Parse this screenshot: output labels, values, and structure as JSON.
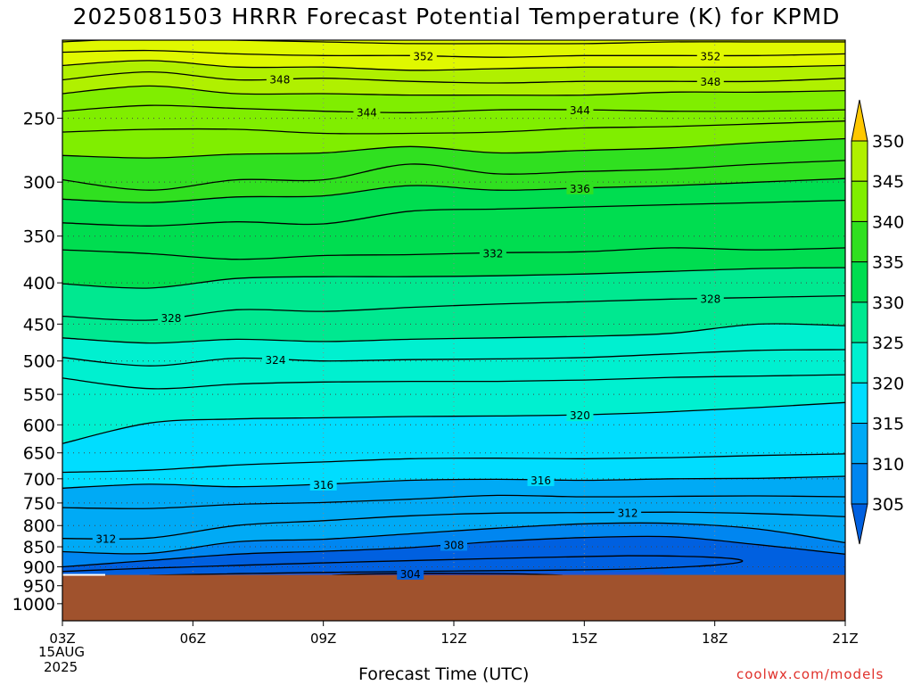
{
  "title": "2025081503 HRRR Forecast Potential Temperature (K) for KPMD",
  "credit": "coolwx.com/models",
  "colors": {
    "ground": "#a0522d",
    "contour": "#000000",
    "bands": [
      "#0060e0",
      "#0086f0",
      "#00aaf5",
      "#00ddff",
      "#00f0d0",
      "#00e890",
      "#00dd50",
      "#30e020",
      "#80ee00",
      "#b0f000",
      "#e0f800",
      "#ffff00",
      "#ffe000",
      "#ffc800"
    ]
  },
  "chart_data": {
    "type": "heatmap",
    "title": "2025081503 HRRR Forecast Potential Temperature (K) for KPMD",
    "xlabel": "Forecast Time (UTC)",
    "ylabel": "",
    "x_ticks": [
      "03Z",
      "06Z",
      "09Z",
      "12Z",
      "15Z",
      "18Z",
      "21Z"
    ],
    "x_start_date": [
      "15AUG",
      "2025"
    ],
    "x_range_hours": [
      3,
      21
    ],
    "y_ticks": [
      250,
      300,
      350,
      400,
      450,
      500,
      550,
      600,
      650,
      700,
      750,
      800,
      850,
      900,
      950,
      1000
    ],
    "y_range_hPa": [
      1050,
      200
    ],
    "log_pressure_axis": true,
    "grid": "dotted",
    "surface_pressure_hPa": 921,
    "colorbar": {
      "levels": [
        305,
        310,
        315,
        320,
        325,
        330,
        335,
        340,
        345,
        350
      ],
      "labels": [
        "305",
        "310",
        "315",
        "320",
        "325",
        "330",
        "335",
        "340",
        "345",
        "350"
      ],
      "extend": "both"
    },
    "contour_labels": [
      {
        "value": "352",
        "hours": [
          11.3,
          17.9
        ]
      },
      {
        "value": "348",
        "hours": [
          8.0,
          17.9
        ]
      },
      {
        "value": "344",
        "hours": [
          10.0,
          14.9
        ]
      },
      {
        "value": "336",
        "hours": [
          14.9
        ]
      },
      {
        "value": "332",
        "hours": [
          12.9
        ]
      },
      {
        "value": "328",
        "hours": [
          5.5,
          17.9
        ]
      },
      {
        "value": "324",
        "hours": [
          7.9
        ]
      },
      {
        "value": "320",
        "hours": [
          14.9
        ]
      },
      {
        "value": "316",
        "hours": [
          9.0,
          14.0
        ]
      },
      {
        "value": "312",
        "hours": [
          4.0,
          16.0
        ]
      },
      {
        "value": "308",
        "hours": [
          12.0
        ]
      },
      {
        "value": "304",
        "hours": [
          11.0
        ]
      }
    ],
    "isentropes": [
      {
        "theta": 354,
        "hours": [
          3,
          5,
          7,
          9,
          11,
          13,
          15,
          17,
          19,
          21
        ],
        "p": [
          201,
          199,
          200,
          201,
          202,
          202,
          202,
          201,
          201,
          201
        ]
      },
      {
        "theta": 352,
        "hours": [
          3,
          5,
          7,
          9,
          11,
          13,
          15,
          17,
          19,
          21
        ],
        "p": [
          207,
          206,
          208,
          209,
          209,
          210,
          209,
          209,
          209,
          208
        ]
      },
      {
        "theta": 350,
        "hours": [
          3,
          5,
          7,
          9,
          11,
          13,
          15,
          17,
          19,
          21
        ],
        "p": [
          215,
          212,
          216,
          216,
          218,
          217,
          216,
          216,
          216,
          215
        ]
      },
      {
        "theta": 348,
        "hours": [
          3,
          5,
          7,
          9,
          11,
          13,
          15,
          17,
          19,
          21
        ],
        "p": [
          224,
          219,
          224,
          223,
          225,
          226,
          225,
          225,
          225,
          223
        ]
      },
      {
        "theta": 346,
        "hours": [
          3,
          5,
          7,
          9,
          11,
          13,
          15,
          17,
          19,
          21
        ],
        "p": [
          233,
          228,
          233,
          233,
          234,
          234,
          234,
          232,
          232,
          231
        ]
      },
      {
        "theta": 344,
        "hours": [
          3,
          5,
          7,
          9,
          11,
          13,
          15,
          17,
          19,
          21
        ],
        "p": [
          245,
          241,
          243,
          245,
          246,
          244,
          244,
          245,
          245,
          244
        ]
      },
      {
        "theta": 342,
        "hours": [
          3,
          5,
          7,
          9,
          11,
          13,
          15,
          17,
          19,
          21
        ],
        "p": [
          260,
          258,
          258,
          261,
          261,
          260,
          257,
          256,
          254,
          252
        ]
      },
      {
        "theta": 340,
        "hours": [
          3,
          5,
          7,
          9,
          11,
          13,
          15,
          17,
          19,
          21
        ],
        "p": [
          278,
          280,
          277,
          276,
          271,
          276,
          274,
          272,
          268,
          265
        ]
      },
      {
        "theta": 338,
        "hours": [
          3,
          5,
          7,
          9,
          11,
          13,
          15,
          17,
          19,
          21
        ],
        "p": [
          298,
          307,
          298,
          298,
          285,
          293,
          291,
          289,
          285,
          282
        ]
      },
      {
        "theta": 336,
        "hours": [
          3,
          5,
          7,
          9,
          11,
          13,
          15,
          17,
          19,
          21
        ],
        "p": [
          315,
          318,
          313,
          312,
          303,
          307,
          305,
          303,
          300,
          297
        ]
      },
      {
        "theta": 334,
        "hours": [
          3,
          5,
          7,
          9,
          11,
          13,
          15,
          17,
          19,
          21
        ],
        "p": [
          337,
          340,
          336,
          338,
          326,
          324,
          322,
          320,
          318,
          316
        ]
      },
      {
        "theta": 332,
        "hours": [
          3,
          5,
          7,
          9,
          11,
          13,
          15,
          17,
          19,
          21
        ],
        "p": [
          364,
          368,
          374,
          370,
          369,
          367,
          366,
          362,
          364,
          362
        ]
      },
      {
        "theta": 330,
        "hours": [
          3,
          5,
          7,
          9,
          11,
          13,
          15,
          17,
          19,
          21
        ],
        "p": [
          401,
          406,
          395,
          393,
          393,
          392,
          390,
          387,
          384,
          383
        ]
      },
      {
        "theta": 328,
        "hours": [
          3,
          5,
          7,
          9,
          11,
          13,
          15,
          17,
          19,
          21
        ],
        "p": [
          440,
          445,
          432,
          434,
          429,
          425,
          422,
          419,
          417,
          415
        ]
      },
      {
        "theta": 326,
        "hours": [
          3,
          5,
          7,
          9,
          11,
          13,
          15,
          17,
          19,
          21
        ],
        "p": [
          468,
          475,
          470,
          473,
          470,
          468,
          466,
          462,
          450,
          452
        ]
      },
      {
        "theta": 324,
        "hours": [
          3,
          5,
          7,
          9,
          11,
          13,
          15,
          17,
          19,
          21
        ],
        "p": [
          495,
          507,
          496,
          500,
          498,
          497,
          495,
          490,
          485,
          484
        ]
      },
      {
        "theta": 322,
        "hours": [
          3,
          5,
          7,
          9,
          11,
          13,
          15,
          17,
          19,
          21
        ],
        "p": [
          525,
          541,
          534,
          531,
          530,
          530,
          528,
          524,
          522,
          520
        ]
      },
      {
        "theta": 320,
        "hours": [
          3,
          5,
          7,
          9,
          11,
          13,
          15,
          17,
          19,
          21
        ],
        "p": [
          633,
          597,
          590,
          588,
          586,
          585,
          583,
          578,
          571,
          563
        ]
      },
      {
        "theta": 318,
        "hours": [
          3,
          5,
          7,
          9,
          11,
          13,
          15,
          17,
          19,
          21
        ],
        "p": [
          687,
          683,
          673,
          667,
          661,
          660,
          661,
          659,
          655,
          652
        ]
      },
      {
        "theta": 316,
        "hours": [
          3,
          5,
          7,
          9,
          11,
          13,
          15,
          17,
          19,
          21
        ],
        "p": [
          719,
          711,
          716,
          711,
          703,
          701,
          703,
          700,
          699,
          695
        ]
      },
      {
        "theta": 314,
        "hours": [
          3,
          5,
          7,
          9,
          11,
          13,
          15,
          17,
          19,
          21
        ],
        "p": [
          760,
          762,
          753,
          749,
          742,
          734,
          737,
          736,
          735,
          737
        ]
      },
      {
        "theta": 312,
        "hours": [
          3,
          5,
          7,
          9,
          11,
          13,
          15,
          17,
          19,
          21
        ],
        "p": [
          830,
          829,
          800,
          789,
          778,
          772,
          771,
          770,
          773,
          780
        ]
      },
      {
        "theta": 310,
        "hours": [
          3,
          5,
          7,
          9,
          11,
          13,
          15,
          17,
          19,
          21
        ],
        "p": [
          862,
          866,
          838,
          832,
          819,
          806,
          796,
          795,
          808,
          840
        ]
      },
      {
        "theta": 308,
        "hours": [
          3,
          5,
          7,
          9,
          11,
          13,
          15,
          17,
          19,
          21
        ],
        "p": [
          900,
          884,
          868,
          861,
          852,
          837,
          828,
          826,
          845,
          868
        ]
      }
    ]
  }
}
